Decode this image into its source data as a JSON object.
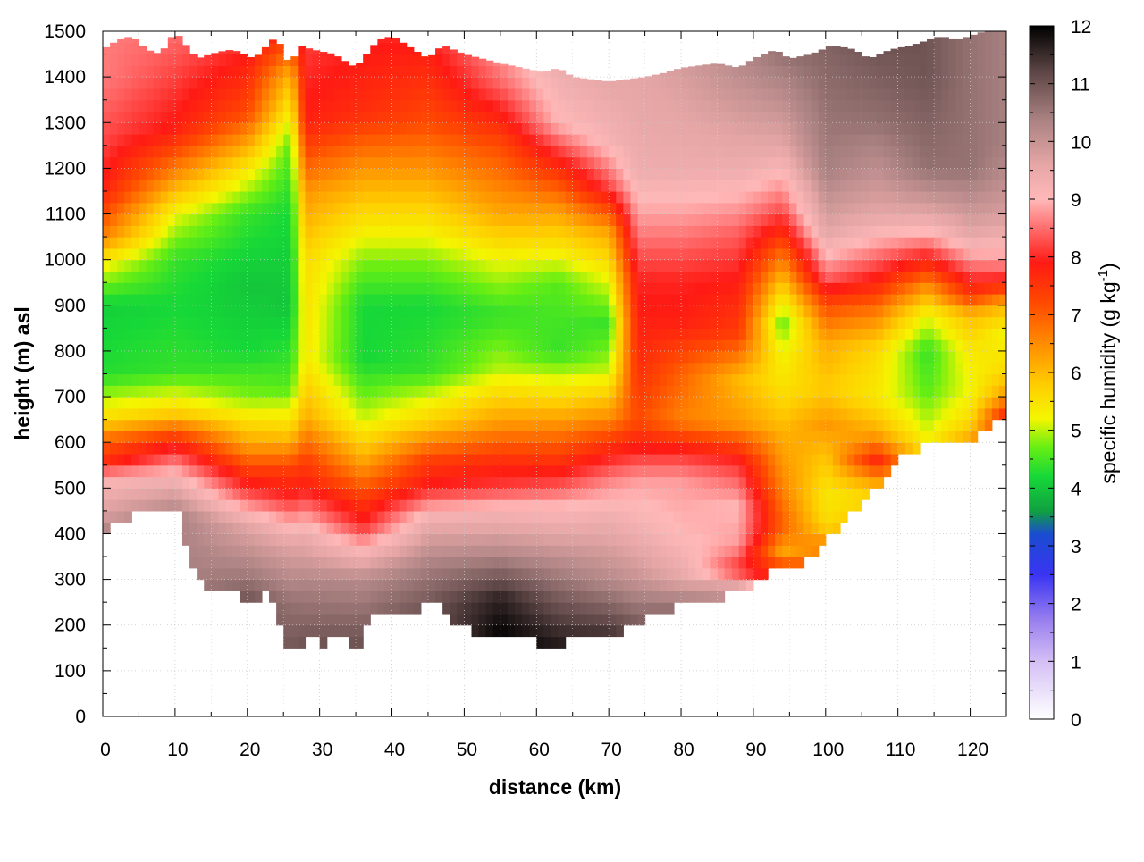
{
  "chart_data": {
    "type": "heatmap",
    "xlabel": "distance (km)",
    "ylabel": "height (m) asl",
    "colorbar_label_main": "specific humidity (g kg",
    "colorbar_label_exp": "-1",
    "colorbar_label_close": ")",
    "x_ticks": [
      "0",
      "10",
      "20",
      "30",
      "40",
      "50",
      "60",
      "70",
      "80",
      "90",
      "100",
      "110",
      "120"
    ],
    "y_ticks": [
      "0",
      "100",
      "200",
      "300",
      "400",
      "500",
      "600",
      "700",
      "800",
      "900",
      "1000",
      "1100",
      "1200",
      "1300",
      "1400",
      "1500"
    ],
    "colorbar_ticks": [
      "0",
      "1",
      "2",
      "3",
      "4",
      "5",
      "6",
      "7",
      "8",
      "9",
      "10",
      "11",
      "12"
    ],
    "xlim": [
      0,
      125
    ],
    "ylim": [
      0,
      1500
    ],
    "zlim": [
      0,
      12
    ],
    "grid": true,
    "colormap": [
      [
        0,
        "#ffffff"
      ],
      [
        1,
        "#d4bff5"
      ],
      [
        1.7,
        "#9a80ee"
      ],
      [
        2.5,
        "#3a34f2"
      ],
      [
        3.2,
        "#1a4cd0"
      ],
      [
        3.6,
        "#10a040"
      ],
      [
        4.2,
        "#16d838"
      ],
      [
        4.7,
        "#66ee14"
      ],
      [
        5.2,
        "#f4f600"
      ],
      [
        5.8,
        "#ffcc00"
      ],
      [
        6.5,
        "#ff8c00"
      ],
      [
        7.2,
        "#ff4a00"
      ],
      [
        7.9,
        "#ff1a14"
      ],
      [
        8.5,
        "#ff6e6e"
      ],
      [
        9.0,
        "#ffb8b8"
      ],
      [
        9.6,
        "#e6a6a6"
      ],
      [
        10.4,
        "#a88080"
      ],
      [
        11.2,
        "#5e4646"
      ],
      [
        12,
        "#000000"
      ]
    ],
    "terrain_height": [
      [
        0,
        400
      ],
      [
        2,
        420
      ],
      [
        5,
        445
      ],
      [
        7,
        460
      ],
      [
        9,
        450
      ],
      [
        11,
        440
      ],
      [
        12,
        330
      ],
      [
        14,
        290
      ],
      [
        16,
        280
      ],
      [
        18,
        275
      ],
      [
        20,
        255
      ],
      [
        21,
        250
      ],
      [
        23,
        270
      ],
      [
        24,
        230
      ],
      [
        25,
        170
      ],
      [
        26,
        140
      ],
      [
        27,
        140
      ],
      [
        28,
        165
      ],
      [
        29,
        180
      ],
      [
        30,
        155
      ],
      [
        31,
        165
      ],
      [
        33,
        180
      ],
      [
        35,
        145
      ],
      [
        36,
        170
      ],
      [
        37,
        210
      ],
      [
        38,
        225
      ],
      [
        40,
        230
      ],
      [
        42,
        220
      ],
      [
        44,
        240
      ],
      [
        46,
        265
      ],
      [
        47,
        230
      ],
      [
        48,
        200
      ],
      [
        50,
        195
      ],
      [
        52,
        185
      ],
      [
        55,
        175
      ],
      [
        57,
        170
      ],
      [
        60,
        165
      ],
      [
        62,
        140
      ],
      [
        63,
        145
      ],
      [
        64,
        175
      ],
      [
        66,
        180
      ],
      [
        68,
        185
      ],
      [
        70,
        185
      ],
      [
        73,
        190
      ],
      [
        75,
        210
      ],
      [
        78,
        235
      ],
      [
        82,
        245
      ],
      [
        86,
        265
      ],
      [
        90,
        290
      ],
      [
        92,
        310
      ],
      [
        94,
        330
      ],
      [
        96,
        320
      ],
      [
        98,
        345
      ],
      [
        100,
        385
      ],
      [
        103,
        430
      ],
      [
        106,
        480
      ],
      [
        109,
        540
      ],
      [
        111,
        575
      ],
      [
        113,
        585
      ],
      [
        115,
        605
      ],
      [
        117,
        610
      ],
      [
        119,
        600
      ],
      [
        120,
        595
      ],
      [
        121,
        610
      ],
      [
        123,
        640
      ],
      [
        124,
        660
      ],
      [
        125,
        665
      ]
    ],
    "top_edge": [
      [
        0,
        1460
      ],
      [
        2,
        1480
      ],
      [
        4,
        1490
      ],
      [
        6,
        1460
      ],
      [
        8,
        1450
      ],
      [
        10,
        1500
      ],
      [
        13,
        1440
      ],
      [
        16,
        1455
      ],
      [
        18,
        1460
      ],
      [
        21,
        1440
      ],
      [
        24,
        1490
      ],
      [
        26,
        1420
      ],
      [
        27,
        1470
      ],
      [
        29,
        1460
      ],
      [
        32,
        1450
      ],
      [
        35,
        1420
      ],
      [
        38,
        1480
      ],
      [
        40,
        1490
      ],
      [
        43,
        1460
      ],
      [
        45,
        1440
      ],
      [
        47,
        1470
      ],
      [
        50,
        1450
      ],
      [
        55,
        1430
      ],
      [
        58,
        1420
      ],
      [
        61,
        1410
      ],
      [
        63,
        1420
      ],
      [
        65,
        1400
      ],
      [
        70,
        1390
      ],
      [
        75,
        1400
      ],
      [
        78,
        1410
      ],
      [
        80,
        1420
      ],
      [
        85,
        1430
      ],
      [
        88,
        1420
      ],
      [
        90,
        1440
      ],
      [
        93,
        1460
      ],
      [
        95,
        1440
      ],
      [
        98,
        1450
      ],
      [
        101,
        1470
      ],
      [
        104,
        1460
      ],
      [
        106,
        1440
      ],
      [
        109,
        1460
      ],
      [
        112,
        1470
      ],
      [
        114,
        1480
      ],
      [
        116,
        1490
      ],
      [
        118,
        1480
      ],
      [
        120,
        1490
      ],
      [
        122,
        1500
      ],
      [
        124,
        1500
      ],
      [
        125,
        1500
      ]
    ],
    "humidity_profiles": [
      {
        "x": 0,
        "h": [
          0,
          400,
          440,
          520,
          560,
          600,
          650,
          750,
          900,
          1000,
          1050,
          1150,
          1250,
          1400,
          1500
        ],
        "q": [
          10.4,
          10.4,
          9.8,
          9.1,
          7.6,
          7.0,
          5.6,
          4.3,
          4.1,
          5.4,
          6.6,
          7.8,
          8.2,
          8.6,
          8.6
        ]
      },
      {
        "x": 10,
        "h": [
          0,
          440,
          500,
          580,
          620,
          670,
          760,
          900,
          1000,
          1100,
          1180,
          1280,
          1500
        ],
        "q": [
          10.4,
          10.4,
          9.6,
          8.2,
          7.2,
          5.6,
          4.4,
          4.2,
          4.4,
          5.2,
          6.4,
          7.8,
          8.5
        ]
      },
      {
        "x": 20,
        "h": [
          0,
          255,
          320,
          420,
          480,
          530,
          600,
          700,
          800,
          950,
          1100,
          1200,
          1320,
          1500
        ],
        "q": [
          11.0,
          11.0,
          10.4,
          9.6,
          8.4,
          7.6,
          6.2,
          4.8,
          4.2,
          4.0,
          4.4,
          5.4,
          7.2,
          8.2
        ]
      },
      {
        "x": 26,
        "h": [
          0,
          140,
          250,
          380,
          480,
          540,
          620,
          720,
          900,
          1100,
          1250,
          1400,
          1500
        ],
        "q": [
          11.0,
          11.0,
          10.6,
          9.6,
          8.0,
          7.4,
          5.8,
          4.6,
          4.0,
          4.2,
          4.6,
          6.0,
          7.6
        ]
      },
      {
        "x": 28,
        "h": [
          0,
          165,
          280,
          400,
          500,
          560,
          650,
          780,
          1000,
          1150,
          1300,
          1500
        ],
        "q": [
          11.0,
          11.0,
          10.4,
          9.4,
          7.9,
          7.4,
          6.2,
          5.4,
          5.6,
          6.4,
          7.8,
          8.2
        ]
      },
      {
        "x": 36,
        "h": [
          0,
          170,
          300,
          370,
          420,
          480,
          560,
          660,
          780,
          900,
          1000,
          1100,
          1200,
          1320,
          1500
        ],
        "q": [
          11.0,
          11.0,
          10.2,
          9.0,
          8.0,
          7.4,
          6.2,
          5.0,
          4.2,
          4.2,
          4.8,
          5.6,
          6.4,
          7.6,
          8.0
        ]
      },
      {
        "x": 45,
        "h": [
          0,
          240,
          330,
          430,
          500,
          560,
          640,
          760,
          900,
          1000,
          1100,
          1200,
          1300,
          1500
        ],
        "q": [
          11.0,
          11.0,
          10.4,
          9.4,
          8.0,
          7.4,
          5.8,
          4.4,
          4.2,
          4.8,
          5.6,
          6.4,
          7.2,
          8.0
        ]
      },
      {
        "x": 55,
        "h": [
          0,
          175,
          260,
          360,
          450,
          500,
          560,
          640,
          760,
          880,
          1000,
          1100,
          1250,
          1380,
          1500
        ],
        "q": [
          12.0,
          12.0,
          11.6,
          10.2,
          9.2,
          8.2,
          7.6,
          6.4,
          5.0,
          4.4,
          5.2,
          6.2,
          7.2,
          8.4,
          9.0
        ]
      },
      {
        "x": 63,
        "h": [
          0,
          145,
          250,
          360,
          460,
          540,
          600,
          700,
          800,
          950,
          1100,
          1200,
          1300,
          1420
        ],
        "q": [
          11.8,
          11.8,
          11.0,
          10.0,
          9.0,
          7.8,
          7.0,
          5.6,
          4.4,
          4.6,
          6.2,
          7.6,
          9.0,
          9.4
        ]
      },
      {
        "x": 70,
        "h": [
          0,
          185,
          300,
          430,
          520,
          580,
          660,
          760,
          860,
          960,
          1060,
          1160,
          1260,
          1400
        ],
        "q": [
          11.4,
          11.4,
          10.2,
          9.4,
          8.6,
          7.8,
          6.4,
          5.0,
          4.4,
          5.2,
          6.2,
          8.2,
          9.2,
          9.6
        ]
      },
      {
        "x": 74,
        "h": [
          0,
          195,
          300,
          430,
          520,
          580,
          650,
          760,
          860,
          960,
          1060,
          1200,
          1400
        ],
        "q": [
          11.0,
          11.0,
          10.0,
          9.2,
          8.8,
          8.0,
          7.2,
          7.6,
          7.8,
          8.0,
          8.6,
          9.4,
          9.6
        ]
      },
      {
        "x": 80,
        "h": [
          0,
          240,
          300,
          400,
          520,
          580,
          650,
          760,
          860,
          960,
          1060,
          1200,
          1420
        ],
        "q": [
          10.6,
          10.6,
          9.6,
          9.0,
          8.8,
          8.0,
          6.6,
          7.0,
          7.8,
          8.0,
          8.6,
          9.4,
          9.8
        ]
      },
      {
        "x": 88,
        "h": [
          0,
          280,
          320,
          380,
          460,
          560,
          640,
          740,
          840,
          940,
          1060,
          1200,
          1430
        ],
        "q": [
          10.0,
          10.0,
          8.0,
          8.8,
          9.0,
          8.0,
          6.4,
          6.0,
          7.4,
          7.8,
          8.4,
          9.4,
          10.2
        ]
      },
      {
        "x": 94,
        "h": [
          0,
          330,
          360,
          420,
          500,
          600,
          700,
          800,
          860,
          920,
          1000,
          1100,
          1250,
          1450
        ],
        "q": [
          10.0,
          7.2,
          6.2,
          7.0,
          6.6,
          6.2,
          5.6,
          5.2,
          4.6,
          5.4,
          6.6,
          8.2,
          9.6,
          10.6
        ]
      },
      {
        "x": 100,
        "h": [
          0,
          385,
          420,
          480,
          560,
          640,
          720,
          820,
          900,
          960,
          1060,
          1200,
          1470
        ],
        "q": [
          10.0,
          6.4,
          5.6,
          5.4,
          5.8,
          6.4,
          5.8,
          6.2,
          7.2,
          8.4,
          9.6,
          10.4,
          10.8
        ]
      },
      {
        "x": 107,
        "h": [
          0,
          480,
          520,
          560,
          620,
          700,
          800,
          880,
          940,
          1000,
          1100,
          1300,
          1460
        ],
        "q": [
          10.0,
          5.6,
          6.4,
          7.8,
          6.2,
          5.4,
          5.6,
          6.6,
          7.6,
          8.4,
          9.6,
          10.6,
          11.0
        ]
      },
      {
        "x": 114,
        "h": [
          0,
          585,
          640,
          720,
          800,
          880,
          940,
          990,
          1040,
          1100,
          1200,
          1400,
          1480
        ],
        "q": [
          10.0,
          5.4,
          5.0,
          4.6,
          4.4,
          5.2,
          6.4,
          7.6,
          8.6,
          9.6,
          10.6,
          11.0,
          11.0
        ]
      },
      {
        "x": 120,
        "h": [
          0,
          595,
          650,
          720,
          800,
          880,
          920,
          980,
          1060,
          1200,
          1500
        ],
        "q": [
          10.0,
          6.4,
          5.6,
          5.2,
          5.4,
          6.0,
          7.4,
          8.4,
          9.6,
          10.6,
          10.6
        ]
      },
      {
        "x": 125,
        "h": [
          0,
          665,
          700,
          760,
          840,
          900,
          950,
          1000,
          1100,
          1250,
          1500
        ],
        "q": [
          10.0,
          7.6,
          6.4,
          5.6,
          5.2,
          6.0,
          7.8,
          8.8,
          9.8,
          10.4,
          10.4
        ]
      }
    ]
  }
}
